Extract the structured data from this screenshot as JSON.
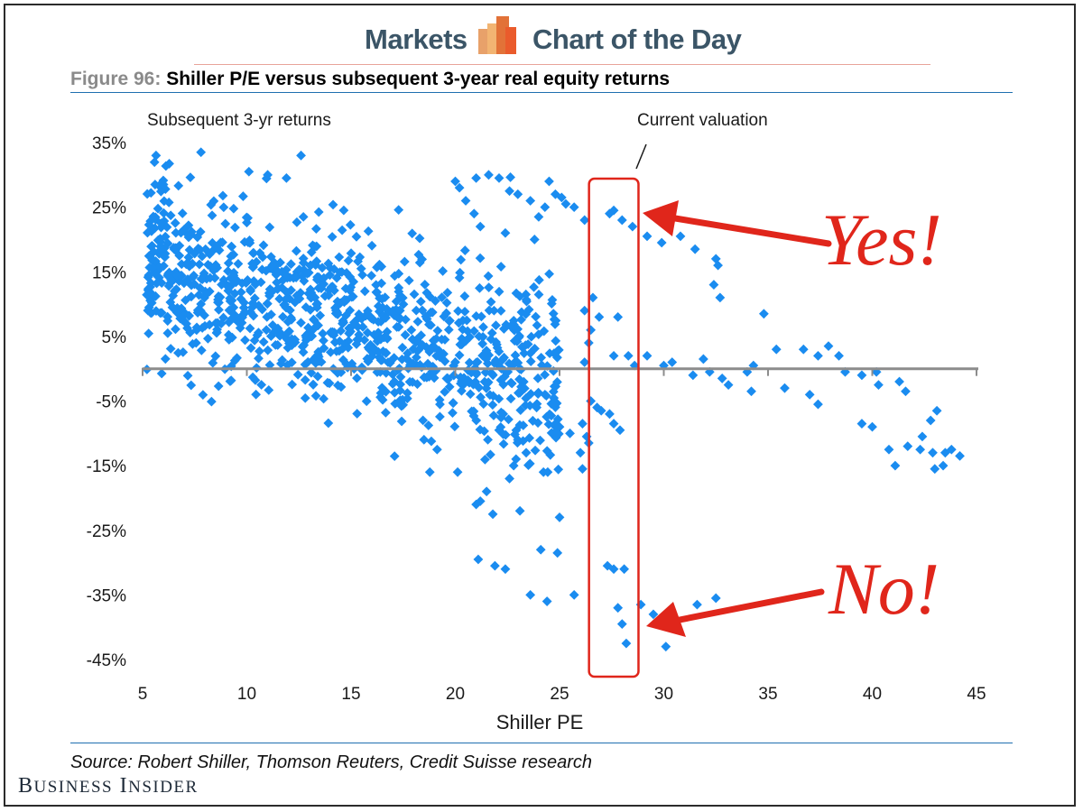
{
  "header": {
    "left_word": "Markets",
    "right_word": "Chart of the Day",
    "logo_colors": [
      "#e8a16a",
      "#f2b472",
      "#e27238",
      "#ea5b2c"
    ]
  },
  "figure": {
    "number_label": "Figure 96:",
    "title": "Shiller P/E versus subsequent 3-year real equity returns"
  },
  "source": "Source: Robert Shiller, Thomson Reuters, Credit Suisse research",
  "brand": {
    "first_cap": "B",
    "first_rest": "USINESS",
    "second_cap": "I",
    "second_rest": "NSIDER"
  },
  "colors": {
    "points": "#1a8cf0",
    "axis": "#8c8c8c",
    "annotation": "#e0261b",
    "highlight_box": "#e0261b"
  },
  "chart_data": {
    "type": "scatter",
    "title": "Shiller P/E versus subsequent 3-year real equity returns",
    "xlabel": "Shiller PE",
    "ylabel": "Subsequent 3-yr returns",
    "xlim": [
      5,
      45
    ],
    "ylim": [
      -45,
      35
    ],
    "x_ticks": [
      5,
      10,
      15,
      20,
      25,
      30,
      35,
      40,
      45
    ],
    "y_ticks": [
      35,
      25,
      15,
      5,
      -5,
      -15,
      -25,
      -35,
      -45
    ],
    "y_tick_labels": [
      "35%",
      "25%",
      "15%",
      "5%",
      "-5%",
      "-15%",
      "-25%",
      "-35%",
      "-45%"
    ],
    "grid": false,
    "annotations": {
      "current_valuation": "Current valuation",
      "current_valuation_x_range": [
        26.5,
        28.7
      ],
      "yes": "Yes!",
      "no": "No!"
    },
    "cluster": {
      "note": "dense cluster of monthly observations, Shiller PE 5-25",
      "count": 1050,
      "seed": 96
    },
    "points": [
      [
        7.8,
        33.5
      ],
      [
        12.6,
        33.0
      ],
      [
        11.0,
        30.0
      ],
      [
        6.0,
        28.5
      ],
      [
        5.6,
        28.5
      ],
      [
        10.1,
        30.5
      ],
      [
        11.9,
        29.5
      ],
      [
        20.0,
        29.0
      ],
      [
        20.2,
        28.0
      ],
      [
        21.0,
        29.5
      ],
      [
        21.6,
        30.0
      ],
      [
        22.1,
        29.5
      ],
      [
        22.6,
        27.5
      ],
      [
        23.0,
        27.0
      ],
      [
        23.6,
        26.0
      ],
      [
        20.5,
        26.0
      ],
      [
        20.9,
        24.0
      ],
      [
        24.5,
        29.0
      ],
      [
        24.8,
        27.0
      ],
      [
        25.1,
        26.5
      ],
      [
        25.3,
        25.5
      ],
      [
        25.7,
        25.0
      ],
      [
        24.0,
        23.5
      ],
      [
        24.3,
        25.0
      ],
      [
        23.8,
        20.0
      ],
      [
        22.4,
        21.0
      ],
      [
        21.2,
        22.0
      ],
      [
        26.2,
        23.0
      ],
      [
        27.4,
        24.0
      ],
      [
        27.6,
        24.5
      ],
      [
        28.0,
        23.0
      ],
      [
        28.5,
        22.0
      ],
      [
        29.2,
        20.5
      ],
      [
        29.9,
        19.5
      ],
      [
        30.8,
        20.5
      ],
      [
        31.5,
        18.5
      ],
      [
        32.5,
        17.0
      ],
      [
        32.6,
        16.0
      ],
      [
        32.4,
        13.0
      ],
      [
        32.7,
        11.0
      ],
      [
        34.8,
        8.5
      ],
      [
        26.6,
        11.0
      ],
      [
        26.2,
        9.0
      ],
      [
        26.9,
        8.0
      ],
      [
        27.8,
        8.0
      ],
      [
        26.5,
        6.0
      ],
      [
        26.4,
        4.0
      ],
      [
        26.2,
        1.0
      ],
      [
        27.6,
        2.0
      ],
      [
        28.3,
        2.0
      ],
      [
        28.6,
        0.5
      ],
      [
        29.2,
        2.0
      ],
      [
        30.0,
        0.5
      ],
      [
        30.4,
        1.0
      ],
      [
        31.9,
        1.5
      ],
      [
        34.0,
        -0.5
      ],
      [
        34.3,
        0.5
      ],
      [
        35.4,
        3.0
      ],
      [
        36.7,
        3.0
      ],
      [
        37.4,
        2.0
      ],
      [
        37.9,
        3.5
      ],
      [
        38.4,
        2.0
      ],
      [
        38.7,
        -0.5
      ],
      [
        39.5,
        -1.0
      ],
      [
        40.2,
        -0.5
      ],
      [
        31.4,
        -1.0
      ],
      [
        32.2,
        -0.5
      ],
      [
        32.8,
        -1.5
      ],
      [
        33.1,
        -2.5
      ],
      [
        34.2,
        -3.5
      ],
      [
        35.8,
        -3.0
      ],
      [
        37.0,
        -4.0
      ],
      [
        37.4,
        -5.5
      ],
      [
        40.3,
        -2.5
      ],
      [
        41.3,
        -2.0
      ],
      [
        41.6,
        -3.5
      ],
      [
        39.5,
        -8.5
      ],
      [
        40.0,
        -9.0
      ],
      [
        41.7,
        -12.0
      ],
      [
        42.4,
        -10.5
      ],
      [
        42.8,
        -8.0
      ],
      [
        43.1,
        -6.5
      ],
      [
        42.3,
        -12.5
      ],
      [
        42.9,
        -13.0
      ],
      [
        43.5,
        -13.0
      ],
      [
        43.8,
        -12.5
      ],
      [
        44.2,
        -13.5
      ],
      [
        43.0,
        -15.5
      ],
      [
        43.4,
        -15.0
      ],
      [
        40.8,
        -12.5
      ],
      [
        41.1,
        -15.0
      ],
      [
        26.5,
        -5.0
      ],
      [
        26.8,
        -6.0
      ],
      [
        27.0,
        -6.5
      ],
      [
        27.4,
        -7.0
      ],
      [
        27.6,
        -8.5
      ],
      [
        27.9,
        -9.5
      ],
      [
        26.1,
        -8.5
      ],
      [
        26.3,
        -10.5
      ],
      [
        26.4,
        -11.5
      ],
      [
        26.0,
        -13.0
      ],
      [
        26.1,
        -15.5
      ],
      [
        25.5,
        -10.0
      ],
      [
        25.0,
        -9.0
      ],
      [
        24.7,
        -5.5
      ],
      [
        24.3,
        -4.0
      ],
      [
        23.9,
        -6.0
      ],
      [
        23.0,
        -11.0
      ],
      [
        23.4,
        -13.0
      ],
      [
        22.8,
        -15.0
      ],
      [
        22.6,
        -17.0
      ],
      [
        21.5,
        -19.0
      ],
      [
        21.2,
        -20.5
      ],
      [
        21.0,
        -21.0
      ],
      [
        21.8,
        -22.5
      ],
      [
        23.1,
        -22.0
      ],
      [
        25.0,
        -23.0
      ],
      [
        24.9,
        -28.5
      ],
      [
        24.1,
        -28.0
      ],
      [
        21.9,
        -30.5
      ],
      [
        22.4,
        -31.0
      ],
      [
        21.1,
        -29.5
      ],
      [
        23.6,
        -35.0
      ],
      [
        24.4,
        -36.0
      ],
      [
        25.7,
        -35.0
      ],
      [
        27.3,
        -30.5
      ],
      [
        27.6,
        -31.0
      ],
      [
        28.1,
        -31.0
      ],
      [
        27.8,
        -37.0
      ],
      [
        28.0,
        -39.5
      ],
      [
        28.2,
        -42.5
      ],
      [
        28.9,
        -36.5
      ],
      [
        30.1,
        -43.0
      ],
      [
        31.6,
        -36.5
      ],
      [
        32.5,
        -35.5
      ],
      [
        29.5,
        -38.0
      ],
      [
        22.3,
        -7.0
      ],
      [
        22.1,
        -9.5
      ]
    ]
  }
}
